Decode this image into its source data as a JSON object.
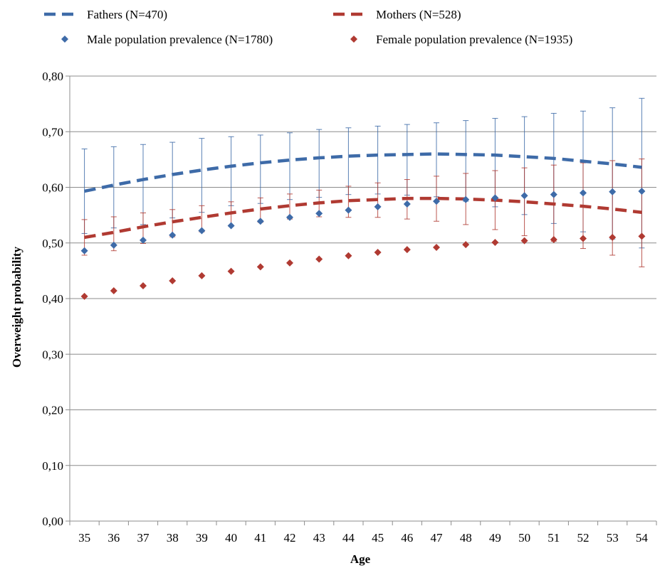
{
  "chart_data": {
    "type": "line",
    "xlabel": "Age",
    "ylabel": "Overweight probability",
    "x": [
      35,
      36,
      37,
      38,
      39,
      40,
      41,
      42,
      43,
      44,
      45,
      46,
      47,
      48,
      49,
      50,
      51,
      52,
      53,
      54
    ],
    "ylim": [
      0,
      0.8
    ],
    "yticks": [
      "0,00",
      "0,10",
      "0,20",
      "0,30",
      "0,40",
      "0,50",
      "0,60",
      "0,70",
      "0,80"
    ],
    "grid": "horizontal",
    "legend_position": "top",
    "series": [
      {
        "name": "Fathers (N=470)",
        "kind": "dashed-line",
        "color": "#3E6BA8",
        "values": [
          0.593,
          0.604,
          0.614,
          0.623,
          0.631,
          0.638,
          0.644,
          0.649,
          0.653,
          0.656,
          0.658,
          0.659,
          0.66,
          0.659,
          0.658,
          0.655,
          0.652,
          0.647,
          0.642,
          0.636
        ],
        "upper": [
          0.669,
          0.673,
          0.678,
          0.681,
          0.684,
          0.688,
          0.691,
          0.694,
          0.698,
          0.701,
          0.704,
          0.707,
          0.71,
          0.713,
          0.716,
          0.719,
          0.722,
          0.725,
          0.728,
          0.731
        ]
      },
      {
        "name": "Mothers (N=528)",
        "kind": "dashed-line",
        "color": "#B03A32",
        "values": [
          0.51,
          0.519,
          0.529,
          0.538,
          0.546,
          0.554,
          0.561,
          0.567,
          0.572,
          0.576,
          0.578,
          0.58,
          0.58,
          0.579,
          0.577,
          0.574,
          0.57,
          0.566,
          0.561,
          0.555
        ],
        "upper": [
          0.542,
          0.545,
          0.549,
          0.552,
          0.556,
          0.56,
          0.564,
          0.568,
          0.572,
          0.576,
          0.58,
          0.584,
          0.588,
          0.592,
          0.596,
          0.6,
          0.605,
          0.61,
          0.615,
          0.62
        ]
      },
      {
        "name": "Male population prevalence (N=1780)",
        "kind": "markers",
        "color": "#3E6BA8",
        "values": [
          0.486,
          0.496,
          0.505,
          0.514,
          0.522,
          0.531,
          0.539,
          0.546,
          0.553,
          0.559,
          0.565,
          0.57,
          0.575,
          0.578,
          0.581,
          0.585,
          0.587,
          0.59,
          0.592,
          0.593
        ]
      },
      {
        "name": "Female population prevalence (N=1935)",
        "kind": "markers",
        "color": "#B03A32",
        "values": [
          0.404,
          0.414,
          0.423,
          0.432,
          0.441,
          0.449,
          0.457,
          0.464,
          0.471,
          0.477,
          0.483,
          0.488,
          0.492,
          0.497,
          0.501,
          0.504,
          0.506,
          0.508,
          0.51,
          0.512
        ]
      }
    ],
    "whiskers": [
      {
        "color": "#3E6BA8",
        "low": [
          0.517,
          0.527,
          0.533,
          0.545,
          0.555,
          0.567,
          0.571,
          0.578,
          0.582,
          0.587,
          0.588,
          0.586,
          0.583,
          0.575,
          0.565,
          0.551,
          0.535,
          0.52,
          0.507,
          0.491
        ],
        "high": [
          0.669,
          0.673,
          0.677,
          0.681,
          0.688,
          0.691,
          0.694,
          0.698,
          0.704,
          0.707,
          0.71,
          0.713,
          0.716,
          0.72,
          0.724,
          0.727,
          0.733,
          0.737,
          0.743,
          0.76
        ]
      },
      {
        "color": "#B03A32",
        "low": [
          0.478,
          0.486,
          0.499,
          0.511,
          0.52,
          0.53,
          0.537,
          0.543,
          0.547,
          0.546,
          0.546,
          0.543,
          0.539,
          0.533,
          0.524,
          0.513,
          0.503,
          0.49,
          0.478,
          0.457
        ],
        "high": [
          0.542,
          0.547,
          0.554,
          0.56,
          0.567,
          0.574,
          0.581,
          0.588,
          0.595,
          0.602,
          0.608,
          0.614,
          0.62,
          0.625,
          0.63,
          0.635,
          0.64,
          0.644,
          0.648,
          0.651
        ]
      }
    ]
  }
}
